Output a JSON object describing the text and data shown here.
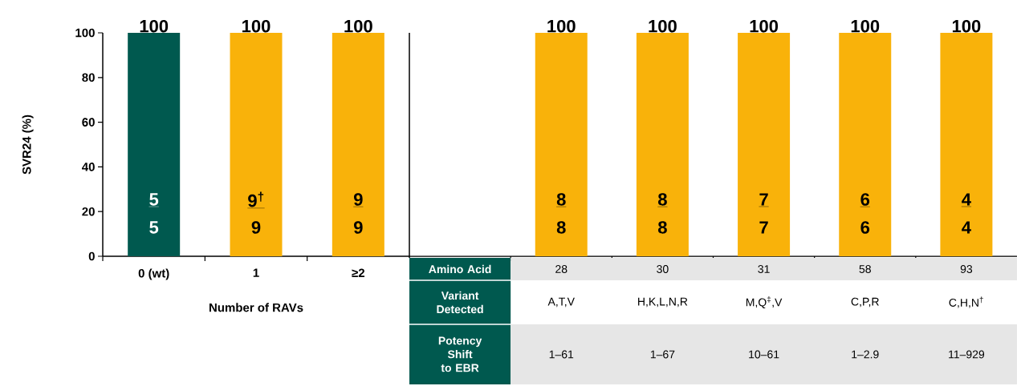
{
  "chart_data": [
    {
      "type": "bar",
      "ylabel": "SVR24 (%)",
      "xlabel": "Number of RAVs",
      "categories": [
        "0 (wt)",
        "1",
        "≥2"
      ],
      "values": [
        100,
        100,
        100
      ],
      "colors": [
        "#00594f",
        "#f9b20a",
        "#f9b20a"
      ],
      "ylim": [
        0,
        100
      ],
      "yticks": [
        0,
        20,
        40,
        60,
        80,
        100
      ],
      "data_labels": true,
      "annotations": [
        "5",
        "5",
        "9$^{†}$",
        "9",
        "9",
        "9"
      ]
    },
    {
      "type": "bar",
      "xlabel": "Amino Acid",
      "categories": [
        "28",
        "30",
        "31",
        "58",
        "93"
      ],
      "values": [
        100,
        100,
        100,
        100,
        100
      ],
      "color": "#f9b20a",
      "ylim": [
        0,
        100
      ],
      "tick_labels": "x",
      "data_labels": true,
      "annotations": [
        "8",
        "8",
        "8",
        "8",
        "7",
        "7",
        "6",
        "6",
        "4",
        "4",
        "Variant Detected",
        "A,T,V",
        "H,K,L,N,R",
        "M,Q$^{‡}$,V",
        "C,P,R",
        "C,H,N$^{†}$",
        "Potency Shift to EBR",
        "1–61",
        "1–67",
        "10–61",
        "1–2.9",
        "11–929"
      ]
    }
  ]
}
